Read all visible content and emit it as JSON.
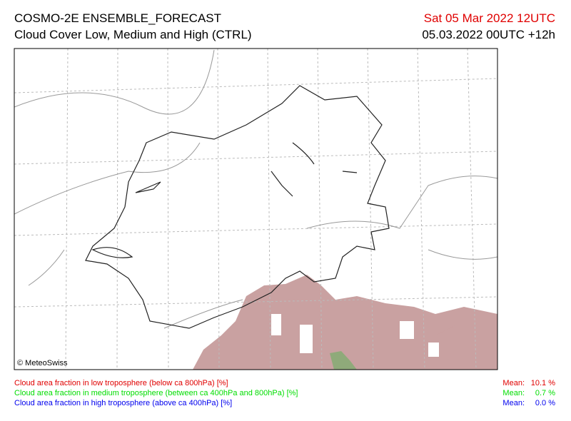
{
  "header": {
    "title": "COSMO-2E ENSEMBLE_FORECAST",
    "subtitle": "Cloud Cover Low, Medium and High (CTRL)",
    "valid_time": "Sat 05 Mar 2022 12UTC",
    "run_time": "05.03.2022 00UTC +12h"
  },
  "map": {
    "credit": "© MeteoSwiss"
  },
  "legend": [
    {
      "label": "Cloud area fraction in low troposphere (below ca 800hPa) [%]",
      "mean_label": "Mean:",
      "mean_value": "10.1 %",
      "color": "#e00000"
    },
    {
      "label": "Cloud area fraction in medium troposphere (between ca 400hPa and 800hPa) [%]",
      "mean_label": "Mean:",
      "mean_value": "0.7 %",
      "color": "#00dd00"
    },
    {
      "label": "Cloud area fraction in high troposphere (above ca 400hPa) [%]",
      "mean_label": "Mean:",
      "mean_value": "0.0 %",
      "color": "#0000ee"
    }
  ]
}
